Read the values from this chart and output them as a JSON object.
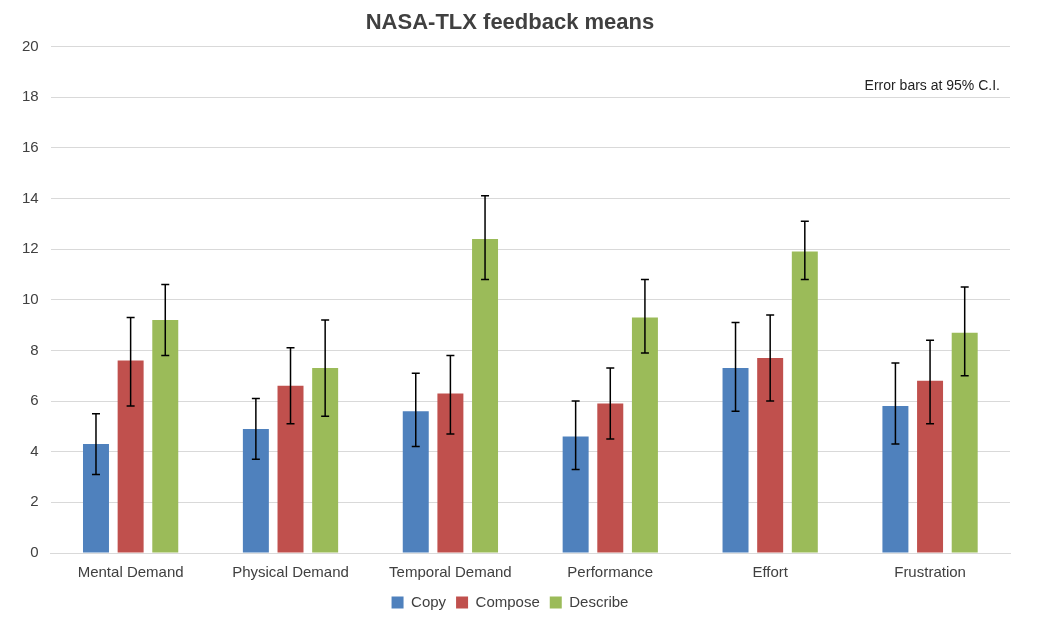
{
  "chart_data": {
    "type": "bar",
    "title": "NASA-TLX feedback means",
    "categories": [
      "Mental Demand",
      "Physical Demand",
      "Temporal Demand",
      "Performance",
      "Effort",
      "Frustration"
    ],
    "series": [
      {
        "name": "Copy",
        "color": "#4f81bd",
        "values": [
          4.3,
          4.9,
          5.6,
          4.6,
          7.3,
          5.8
        ],
        "errors": [
          [
            3.1,
            5.5
          ],
          [
            3.7,
            6.1
          ],
          [
            4.2,
            7.1
          ],
          [
            3.3,
            6.0
          ],
          [
            5.6,
            9.1
          ],
          [
            4.3,
            7.5
          ]
        ]
      },
      {
        "name": "Compose",
        "color": "#c0504d",
        "values": [
          7.6,
          6.6,
          6.3,
          5.9,
          7.7,
          6.8
        ],
        "errors": [
          [
            5.8,
            9.3
          ],
          [
            5.1,
            8.1
          ],
          [
            4.7,
            7.8
          ],
          [
            4.5,
            7.3
          ],
          [
            6.0,
            9.4
          ],
          [
            5.1,
            8.4
          ]
        ]
      },
      {
        "name": "Describe",
        "color": "#9bbb59",
        "values": [
          9.2,
          7.3,
          12.4,
          9.3,
          11.9,
          8.7
        ],
        "errors": [
          [
            7.8,
            10.6
          ],
          [
            5.4,
            9.2
          ],
          [
            10.8,
            14.1
          ],
          [
            7.9,
            10.8
          ],
          [
            10.8,
            13.1
          ],
          [
            7.0,
            10.5
          ]
        ]
      }
    ],
    "ylim": [
      0,
      20
    ],
    "yticks": [
      0,
      2,
      4,
      6,
      8,
      10,
      12,
      14,
      16,
      18,
      20
    ],
    "grid": "y",
    "legend": "bottom",
    "annotations": [
      "Error bars at 95% C.I."
    ]
  }
}
